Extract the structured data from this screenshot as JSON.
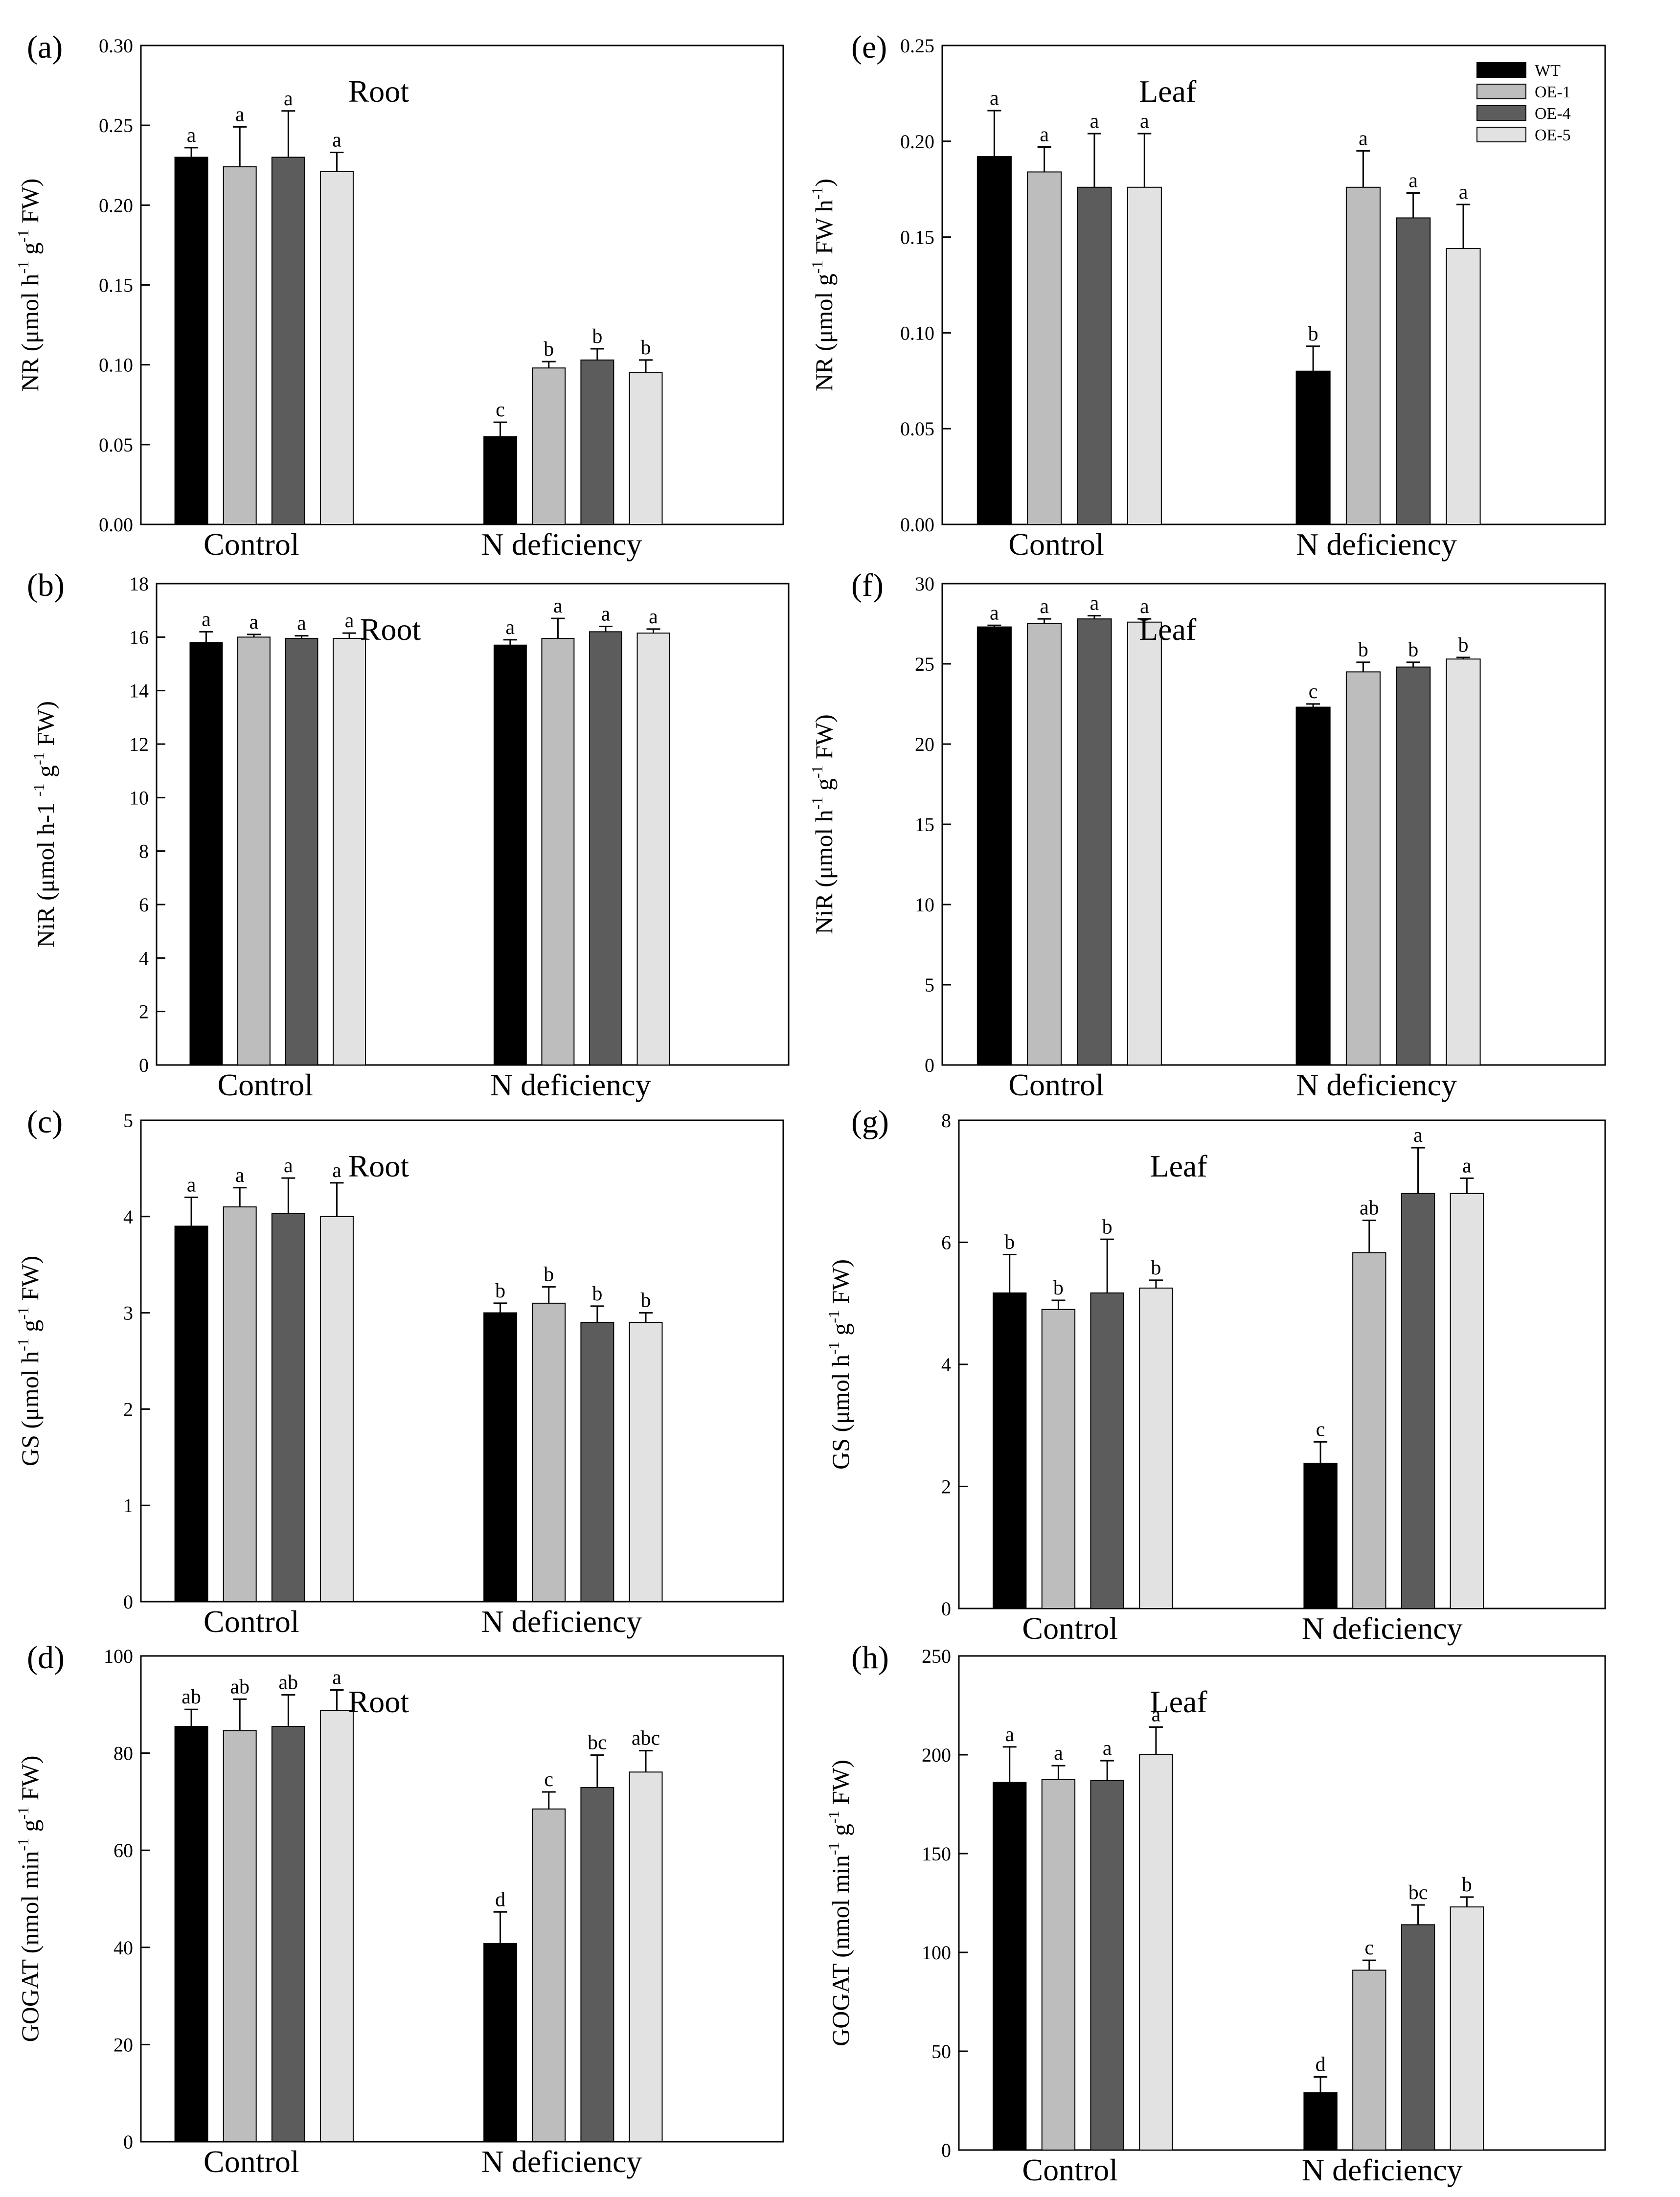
{
  "series_colors": [
    "#000000",
    "#bdbdbd",
    "#5c5c5c",
    "#e2e2e2"
  ],
  "legend": {
    "entries": [
      "WT",
      "OE-1",
      "OE-4",
      "OE-5"
    ]
  },
  "chart_data": [
    {
      "type": "bar",
      "panel": "(a)",
      "tissue": "Root",
      "ylabel": "NR (μmol h-1 g-1 FW)",
      "ylabel_parts": [
        "NR (μmol h",
        "-1",
        " g",
        "-1",
        " FW)"
      ],
      "categories": [
        "Control",
        "N deficiency"
      ],
      "ylim": [
        0,
        0.3
      ],
      "yticks": [
        "0.00",
        "0.05",
        "0.10",
        "0.15",
        "0.20",
        "0.25",
        "0.30"
      ],
      "series": [
        {
          "name": "WT",
          "values": [
            0.23,
            0.055
          ],
          "errors": [
            0.006,
            0.009
          ],
          "letters": [
            "a",
            "c"
          ]
        },
        {
          "name": "OE-1",
          "values": [
            0.224,
            0.098
          ],
          "errors": [
            0.025,
            0.004
          ],
          "letters": [
            "a",
            "b"
          ]
        },
        {
          "name": "OE-4",
          "values": [
            0.23,
            0.103
          ],
          "errors": [
            0.029,
            0.007
          ],
          "letters": [
            "a",
            "b"
          ]
        },
        {
          "name": "OE-5",
          "values": [
            0.221,
            0.095
          ],
          "errors": [
            0.012,
            0.008
          ],
          "letters": [
            "a",
            "b"
          ]
        }
      ]
    },
    {
      "type": "bar",
      "panel": "(e)",
      "tissue": "Leaf",
      "ylabel": "NR (μmol g-1 FW h-1)",
      "ylabel_parts": [
        "NR (μmol g",
        "-1",
        " FW h",
        "-1",
        ")"
      ],
      "categories": [
        "Control",
        "N deficiency"
      ],
      "ylim": [
        0,
        0.25
      ],
      "yticks": [
        "0.00",
        "0.05",
        "0.10",
        "0.15",
        "0.20",
        "0.25"
      ],
      "show_legend": true,
      "series": [
        {
          "name": "WT",
          "values": [
            0.192,
            0.08
          ],
          "errors": [
            0.024,
            0.013
          ],
          "letters": [
            "a",
            "b"
          ]
        },
        {
          "name": "OE-1",
          "values": [
            0.184,
            0.176
          ],
          "errors": [
            0.013,
            0.019
          ],
          "letters": [
            "a",
            "a"
          ]
        },
        {
          "name": "OE-4",
          "values": [
            0.176,
            0.16
          ],
          "errors": [
            0.028,
            0.013
          ],
          "letters": [
            "a",
            "a"
          ]
        },
        {
          "name": "OE-5",
          "values": [
            0.176,
            0.144
          ],
          "errors": [
            0.028,
            0.023
          ],
          "letters": [
            "a",
            "a"
          ]
        }
      ]
    },
    {
      "type": "bar",
      "panel": "(b)",
      "tissue": "Root",
      "ylabel": "NiR (μmol h-1 -1 g-1 FW)",
      "ylabel_parts": [
        "NiR (μmol h-1 ",
        "-1",
        " g",
        "-1",
        " FW)"
      ],
      "categories": [
        "Control",
        "N deficiency"
      ],
      "ylim": [
        0,
        18
      ],
      "yticks": [
        "0",
        "2",
        "4",
        "6",
        "8",
        "10",
        "12",
        "14",
        "16",
        "18"
      ],
      "series": [
        {
          "name": "WT",
          "values": [
            15.8,
            15.7
          ],
          "errors": [
            0.4,
            0.2
          ],
          "letters": [
            "a",
            "a"
          ]
        },
        {
          "name": "OE-1",
          "values": [
            16.0,
            15.95
          ],
          "errors": [
            0.1,
            0.75
          ],
          "letters": [
            "a",
            "a"
          ]
        },
        {
          "name": "OE-4",
          "values": [
            15.95,
            16.2
          ],
          "errors": [
            0.1,
            0.2
          ],
          "letters": [
            "a",
            "a"
          ]
        },
        {
          "name": "OE-5",
          "values": [
            15.95,
            16.15
          ],
          "errors": [
            0.2,
            0.15
          ],
          "letters": [
            "a",
            "a"
          ]
        }
      ]
    },
    {
      "type": "bar",
      "panel": "(f)",
      "tissue": "Leaf",
      "ylabel": "NiR (μmol h-1 g-1 FW)",
      "ylabel_parts": [
        "NiR (μmol h",
        "-1",
        " g",
        "-1",
        " FW)"
      ],
      "categories": [
        "Control",
        "N deficiency"
      ],
      "ylim": [
        0,
        30
      ],
      "yticks": [
        "0",
        "5",
        "10",
        "15",
        "20",
        "25",
        "30"
      ],
      "series": [
        {
          "name": "WT",
          "values": [
            27.3,
            22.3
          ],
          "errors": [
            0.1,
            0.2
          ],
          "letters": [
            "a",
            "c"
          ]
        },
        {
          "name": "OE-1",
          "values": [
            27.5,
            24.5
          ],
          "errors": [
            0.3,
            0.6
          ],
          "letters": [
            "a",
            "b"
          ]
        },
        {
          "name": "OE-4",
          "values": [
            27.8,
            24.8
          ],
          "errors": [
            0.2,
            0.3
          ],
          "letters": [
            "a",
            "b"
          ]
        },
        {
          "name": "OE-5",
          "values": [
            27.6,
            25.3
          ],
          "errors": [
            0.2,
            0.1
          ],
          "letters": [
            "a",
            "b"
          ]
        }
      ]
    },
    {
      "type": "bar",
      "panel": "(c)",
      "tissue": "Root",
      "ylabel": "GS (μmol h-1 g-1 FW)",
      "ylabel_parts": [
        "GS (μmol h",
        "-1",
        " g",
        "-1",
        " FW)"
      ],
      "categories": [
        "Control",
        "N deficiency"
      ],
      "ylim": [
        0,
        5
      ],
      "yticks": [
        "0",
        "1",
        "2",
        "3",
        "4",
        "5"
      ],
      "series": [
        {
          "name": "WT",
          "values": [
            3.9,
            3.0
          ],
          "errors": [
            0.3,
            0.1
          ],
          "letters": [
            "a",
            "b"
          ]
        },
        {
          "name": "OE-1",
          "values": [
            4.1,
            3.1
          ],
          "errors": [
            0.2,
            0.17
          ],
          "letters": [
            "a",
            "b"
          ]
        },
        {
          "name": "OE-4",
          "values": [
            4.03,
            2.9
          ],
          "errors": [
            0.37,
            0.17
          ],
          "letters": [
            "a",
            "b"
          ]
        },
        {
          "name": "OE-5",
          "values": [
            4.0,
            2.9
          ],
          "errors": [
            0.35,
            0.1
          ],
          "letters": [
            "a",
            "b"
          ]
        }
      ]
    },
    {
      "type": "bar",
      "panel": "(g)",
      "tissue": "Leaf",
      "ylabel": "GS (μmol h-1 g-1 FW)",
      "ylabel_parts": [
        "GS (μmol h",
        "-1",
        " g",
        "-1",
        " FW)"
      ],
      "categories": [
        "Control",
        "N deficiency"
      ],
      "ylim": [
        0,
        8
      ],
      "yticks": [
        "0",
        "2",
        "4",
        "6",
        "8"
      ],
      "series": [
        {
          "name": "WT",
          "values": [
            5.17,
            2.38
          ],
          "errors": [
            0.63,
            0.35
          ],
          "letters": [
            "b",
            "c"
          ]
        },
        {
          "name": "OE-1",
          "values": [
            4.9,
            5.83
          ],
          "errors": [
            0.15,
            0.53
          ],
          "letters": [
            "b",
            "ab"
          ]
        },
        {
          "name": "OE-4",
          "values": [
            5.17,
            6.8
          ],
          "errors": [
            0.88,
            0.75
          ],
          "letters": [
            "b",
            "a"
          ]
        },
        {
          "name": "OE-5",
          "values": [
            5.25,
            6.8
          ],
          "errors": [
            0.13,
            0.25
          ],
          "letters": [
            "b",
            "a"
          ]
        }
      ]
    },
    {
      "type": "bar",
      "panel": "(d)",
      "tissue": "Root",
      "ylabel": "GOGAT (nmol min-1 g-1 FW)",
      "ylabel_parts": [
        "GOGAT (nmol min",
        "-1",
        " g",
        "-1",
        " FW)"
      ],
      "categories": [
        "Control",
        "N deficiency"
      ],
      "ylim": [
        0,
        100
      ],
      "yticks": [
        "0",
        "20",
        "40",
        "60",
        "80",
        "100"
      ],
      "series": [
        {
          "name": "WT",
          "values": [
            85.5,
            40.8
          ],
          "errors": [
            3.5,
            6.5
          ],
          "letters": [
            "ab",
            "d"
          ]
        },
        {
          "name": "OE-1",
          "values": [
            84.6,
            68.5
          ],
          "errors": [
            6.5,
            3.5
          ],
          "letters": [
            "ab",
            "c"
          ]
        },
        {
          "name": "OE-4",
          "values": [
            85.5,
            72.9
          ],
          "errors": [
            6.5,
            6.7
          ],
          "letters": [
            "ab",
            "bc"
          ]
        },
        {
          "name": "OE-5",
          "values": [
            88.8,
            76.1
          ],
          "errors": [
            4.2,
            4.4
          ],
          "letters": [
            "a",
            "abc"
          ]
        }
      ]
    },
    {
      "type": "bar",
      "panel": "(h)",
      "tissue": "Leaf",
      "ylabel": "GOGAT (nmol min-1 g-1 FW)",
      "ylabel_parts": [
        "GOGAT (nmol min",
        "-1",
        " g",
        "-1",
        " FW)"
      ],
      "categories": [
        "Control",
        "N deficiency"
      ],
      "ylim": [
        0,
        250
      ],
      "yticks": [
        "0",
        "50",
        "100",
        "150",
        "200",
        "250"
      ],
      "series": [
        {
          "name": "WT",
          "values": [
            186,
            29
          ],
          "errors": [
            18,
            8
          ],
          "letters": [
            "a",
            "d"
          ]
        },
        {
          "name": "OE-1",
          "values": [
            187.5,
            91
          ],
          "errors": [
            7,
            5
          ],
          "letters": [
            "a",
            "c"
          ]
        },
        {
          "name": "OE-4",
          "values": [
            187,
            114
          ],
          "errors": [
            10,
            10
          ],
          "letters": [
            "a",
            "bc"
          ]
        },
        {
          "name": "OE-5",
          "values": [
            200,
            123
          ],
          "errors": [
            14,
            5
          ],
          "letters": [
            "a",
            "b"
          ]
        }
      ]
    }
  ]
}
